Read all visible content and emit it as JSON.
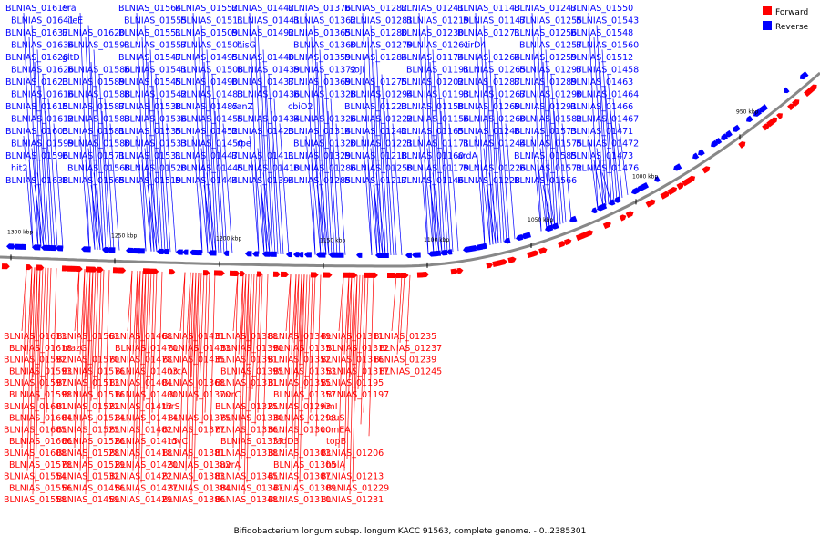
{
  "caption": "Bifidobacterium longum subsp. longum KACC 91563, complete genome. - 0..2385301",
  "legend": [
    {
      "label": "Forward",
      "color": "#ff0000"
    },
    {
      "label": "Reverse",
      "color": "#0000ff"
    }
  ],
  "colors": {
    "forward": "#ff0000",
    "reverse": "#0000ff",
    "backbone": "#888888"
  },
  "axis_ticks": [
    {
      "label": "1300 kbp",
      "pos": 1300000
    },
    {
      "label": "1250 kbp",
      "pos": 1250000
    },
    {
      "label": "1200 kbp",
      "pos": 1200000
    },
    {
      "label": "1150 kbp",
      "pos": 1150000
    },
    {
      "label": "1100 kbp",
      "pos": 1100000
    },
    {
      "label": "1050 kbp",
      "pos": 1050000
    },
    {
      "label": "1000 kbp",
      "pos": 1000000
    },
    {
      "label": "950 kbp",
      "pos": 950000
    }
  ],
  "reverse_labels": [
    "BLNIAS_01619",
    "BLNIAS_01641",
    "BLNIAS_01637",
    "BLNIAS_01636",
    "BLNIAS_01628",
    "BLNIAS_01626",
    "BLNIAS_01623",
    "BLNIAS_01616",
    "BLNIAS_01615",
    "BLNIAS_01612",
    "BLNIAS_01603",
    "BLNIAS_01599",
    "BLNIAS_01596",
    "hit2",
    "BLNIAS_01638",
    "era",
    "ileE",
    "BLNIAS_01620",
    "BLNIAS_01591",
    "gltD",
    "BLNIAS_01586",
    "BLNIAS_01589",
    "BLNIAS_01588",
    "BLNIAS_01587",
    "BLNIAS_01583",
    "BLNIAS_01581",
    "BLNIAS_01580",
    "BLNIAS_01571",
    "BLNIAS_01568",
    "BLNIAS_01565",
    "BLNIAS_01564",
    "BLNIAS_01555",
    "BLNIAS_01551",
    "BLNIAS_01557",
    "BLNIAS_01547",
    "BLNIAS_01541",
    "BLNIAS_01545",
    "BLNIAS_01542",
    "BLNIAS_01538",
    "BLNIAS_01536",
    "BLNIAS_01535",
    "BLNIAS_01533",
    "BLNIAS_01531",
    "BLNIAS_01520",
    "BLNIAS_01519",
    "BLNIAS_01552",
    "BLNIAS_01511",
    "BLNIAS_01509",
    "BLNIAS_01501",
    "BLNIAS_01495",
    "BLNIAS_01508",
    "BLNIAS_01490",
    "BLNIAS_01483",
    "BLNIAS_01485",
    "BLNIAS_01455",
    "BLNIAS_01452",
    "BLNIAS_01450",
    "BLNIAS_01447",
    "BLNIAS_01445",
    "BLNIAS_01444",
    "BLNIAS_01442",
    "BLNIAS_01441",
    "BLNIAS_01492",
    "hisG",
    "BLNIAS_01440",
    "BLNIAS_01439",
    "BLNIAS_01437",
    "BLNIAS_01436",
    "vanZ",
    "BLNIAS_01434",
    "BLNIAS_01423",
    "rpe",
    "BLNIAS_01411",
    "BLNIAS_01410",
    "BLNIAS_01394",
    "BLNIAS_01376",
    "BLNIAS_01362",
    "BLNIAS_01365",
    "BLNIAS_01360",
    "BLNIAS_01359",
    "BLNIAS_01372",
    "BLNIAS_01369",
    "BLNIAS_01328",
    "cbiO2",
    "BLNIAS_01326",
    "BLNIAS_01314",
    "BLNIAS_01320",
    "BLNIAS_01329",
    "BLNIAS_01286",
    "BLNIAS_01285",
    "BLNIAS_01282",
    "BLNIAS_01281",
    "BLNIAS_01280",
    "BLNIAS_01279",
    "BLNIAS_01284",
    "sojI",
    "BLNIAS_01275",
    "BLNIAS_01294",
    "BLNIAS_01223",
    "BLNIAS_01222",
    "BLNIAS_01242",
    "BLNIAS_01221",
    "BLNIAS_01218",
    "BLNIAS_01250",
    "BLNIAS_01217",
    "BLNIAS_01241",
    "BLNIAS_01219",
    "BLNIAS_01230",
    "BLNIAS_01261",
    "BLNIAS_01174",
    "BLNIAS_01191",
    "BLNIAS_01202",
    "BLNIAS_01193",
    "BLNIAS_01158",
    "BLNIAS_01156",
    "BLNIAS_01165",
    "BLNIAS_01171",
    "BLNIAS_01160",
    "BLNIAS_01179",
    "BLNIAS_01146",
    "BLNIAS_01143",
    "BLNIAS_01147",
    "BLNIAS_01271",
    "virD4",
    "BLNIAS_01264",
    "BLNIAS_01265",
    "BLNIAS_01287",
    "BLNIAS_01267",
    "BLNIAS_01269",
    "BLNIAS_01260",
    "BLNIAS_01248",
    "BLNIAS_01244",
    "ardA",
    "BLNIAS_01226",
    "BLNIAS_01228",
    "BLNIAS_01247",
    "BLNIAS_01255",
    "BLNIAS_01256",
    "BLNIAS_01257",
    "BLNIAS_01259",
    "BLNIAS_01297",
    "BLNIAS_01289",
    "BLNIAS_01290",
    "BLNIAS_01291",
    "BLNIAS_01582",
    "BLNIAS_01573",
    "BLNIAS_01575",
    "BLNIAS_01585",
    "BLNIAS_01572",
    "BLNIAS_01566",
    "BLNIAS_01550",
    "BLNIAS_01543",
    "BLNIAS_01548",
    "BLNIAS_01560",
    "BLNIAS_01512",
    "BLNIAS_01458",
    "BLNIAS_01463",
    "BLNIAS_01464",
    "BLNIAS_01466",
    "BLNIAS_01467",
    "BLNIAS_01471",
    "BLNIAS_01472",
    "BLNIAS_01473",
    "BLNIAS_01476"
  ],
  "forward_labels": [
    "BLNIAS_01613",
    "BLNIAS_01618",
    "BLNIAS_01592",
    "BLNIAS_01593",
    "BLNIAS_01597",
    "BLNIAS_01598",
    "BLNIAS_01601",
    "BLNIAS_01604",
    "BLNIAS_01605",
    "BLNIAS_01606",
    "BLNIAS_01608",
    "BLNIAS_01578",
    "BLNIAS_01554",
    "BLNIAS_01556",
    "BLNIAS_01558",
    "BLNIAS_01563",
    "mazG",
    "BLNIAS_01570",
    "BLNIAS_01576",
    "BLNIAS_01513",
    "BLNIAS_01516",
    "BLNIAS_01522",
    "BLNIAS_01524",
    "BLNIAS_01525",
    "BLNIAS_01526",
    "BLNIAS_01528",
    "BLNIAS_01529",
    "BLNIAS_01532",
    "BLNIAS_01456",
    "BLNIAS_01459",
    "BLNIAS_01468",
    "BLNIAS_01470",
    "BLNIAS_01478",
    "BLNIAS_01403",
    "BLNIAS_01404",
    "BLNIAS_01400",
    "BLNIAS_01413",
    "BLNIAS_01414",
    "BLNIAS_01402",
    "BLNIAS_01415",
    "BLNIAS_01418",
    "BLNIAS_01420",
    "BLNIAS_01422",
    "BLNIAS_01427",
    "BLNIAS_01429",
    "BLNIAS_01431",
    "BLNIAS_01433",
    "BLNIAS_01435",
    "hrcA",
    "BLNIAS_01368",
    "BLNIAS_01370",
    "thrS",
    "BLNIAS_01375",
    "BLNIAS_01377",
    "ruvC",
    "BLNIAS_01381",
    "BLNIAS_01382",
    "BLNIAS_01383",
    "BLNIAS_01384",
    "BLNIAS_01386",
    "BLNIAS_01388",
    "BLNIAS_01390",
    "BLNIAS_01391",
    "BLNIAS_01395",
    "BLNIAS_01331",
    "uvrC",
    "BLNIAS_01325",
    "BLNIAS_01330",
    "BLNIAS_01336",
    "BLNIAS_01337",
    "BLNIAS_01338",
    "uvrA",
    "BLNIAS_01345",
    "BLNIAS_01347",
    "BLNIAS_01348",
    "BLNIAS_01349",
    "BLNIAS_01351",
    "BLNIAS_01352",
    "BLNIAS_01353",
    "BLNIAS_01355",
    "BLNIAS_01357",
    "BLNIAS_01293",
    "BLNIAS_01298",
    "BLNIAS_01300",
    "fadD3",
    "BLNIAS_01303",
    "BLNIAS_01305",
    "BLNIAS_01307",
    "BLNIAS_01309",
    "BLNIAS_01310",
    "BLNIAS_01311",
    "BLNIAS_01312",
    "BLNIAS_01316",
    "BLNIAS_01317",
    "BLNIAS_01195",
    "BLNIAS_01197",
    "rimI",
    "leuS",
    "comEA",
    "topB",
    "BLNIAS_01206",
    "holA",
    "BLNIAS_01213",
    "BLNIAS_01229",
    "BLNIAS_01231",
    "BLNIAS_01235",
    "BLNIAS_01237",
    "BLNIAS_01239",
    "BLNIAS_01245"
  ]
}
